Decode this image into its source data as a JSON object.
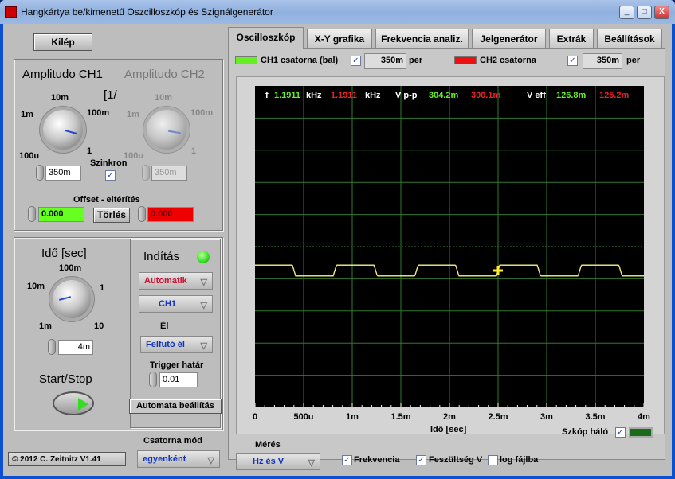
{
  "window": {
    "title": "Hangkártya be/kimenetű Oszcilloszkóp és Szignálgenerátor",
    "controls": [
      "_",
      "□",
      "X"
    ]
  },
  "left": {
    "exit_label": "Kilép",
    "amp_ch1_title": "Amplitudo CH1",
    "amp_ch2_title": "Amplitudo CH2",
    "unit_marker": "[1/",
    "amp_ticks": [
      "100u",
      "1m",
      "10m",
      "100m",
      "1"
    ],
    "ch1_amp_value": "350m",
    "ch2_amp_value": "350m",
    "sync_label": "Szinkron",
    "sync_checked": true,
    "offset_title": "Offset - eltérítés",
    "offset_ch1": "0.000",
    "offset_ch2": "0.000",
    "clear_label": "Törlés",
    "time_title": "Idő [sec]",
    "time_ticks": [
      "1m",
      "10m",
      "100m",
      "1",
      "10"
    ],
    "time_value": "4m",
    "start_stop_label": "Start/Stop",
    "copyright": "© 2012   C. Zeitnitz V1.41"
  },
  "trigger": {
    "title": "Indítás",
    "mode": "Automatik",
    "source": "CH1",
    "edge_label": "Él",
    "edge": "Felfutó él",
    "level_label": "Trigger határ",
    "level": "0.01",
    "auto_setup_label": "Automata beállítás",
    "led_color": "#33dd22"
  },
  "channel_mode": {
    "label": "Csatorna mód",
    "value": "egyenként"
  },
  "tabs": [
    {
      "label": "Oscilloszkóp",
      "active": true
    },
    {
      "label": "X-Y grafika"
    },
    {
      "label": "Frekvencia analiz."
    },
    {
      "label": "Jelgenerátor"
    },
    {
      "label": "Extrák"
    },
    {
      "label": "Beállítások"
    }
  ],
  "channels": {
    "ch1": {
      "label": "CH1 csatorna (bal)",
      "checked": true,
      "scale": "350m",
      "unit": "per",
      "color": "#66ee22"
    },
    "ch2": {
      "label": "CH2 csatorna",
      "checked": true,
      "scale": "350m",
      "unit": "per",
      "color": "#ee1111"
    }
  },
  "readout": {
    "f_label": "f",
    "f_ch1": "1.1911",
    "f_ch2": "1.1911",
    "f_unit": "kHz",
    "vpp_label": "V p-p",
    "vpp_ch1": "304.2m",
    "vpp_ch2": "300.1m",
    "veff_label": "V eff",
    "veff_ch1": "126.8m",
    "veff_ch2": "125.2m"
  },
  "chart_data": {
    "type": "line",
    "xlabel": "Idő [sec]",
    "x_ticks": [
      "0",
      "500u",
      "1m",
      "1.5m",
      "2m",
      "2.5m",
      "3m",
      "3.5m",
      "4m"
    ],
    "xlim": [
      0,
      0.004
    ],
    "grid": true,
    "trigger_time": 0.0025,
    "series": [
      {
        "name": "CH1 csatorna (bal)",
        "waveform": "square",
        "frequency_hz": 1191.1,
        "vpp": 0.3042,
        "color": "#eeee88"
      },
      {
        "name": "CH2 csatorna",
        "waveform": "square",
        "frequency_hz": 1191.1,
        "vpp": 0.3001,
        "color": "#dd4411"
      }
    ]
  },
  "scope_grid": {
    "label": "Szkóp háló",
    "checked": true,
    "color": "#1a6a1a"
  },
  "measure": {
    "label": "Mérés",
    "value": "Hz és V",
    "frequency_label": "Frekvencia",
    "frequency_checked": true,
    "voltage_label": "Feszültség V",
    "voltage_checked": true,
    "log_label": "log fájlba",
    "log_checked": false
  }
}
